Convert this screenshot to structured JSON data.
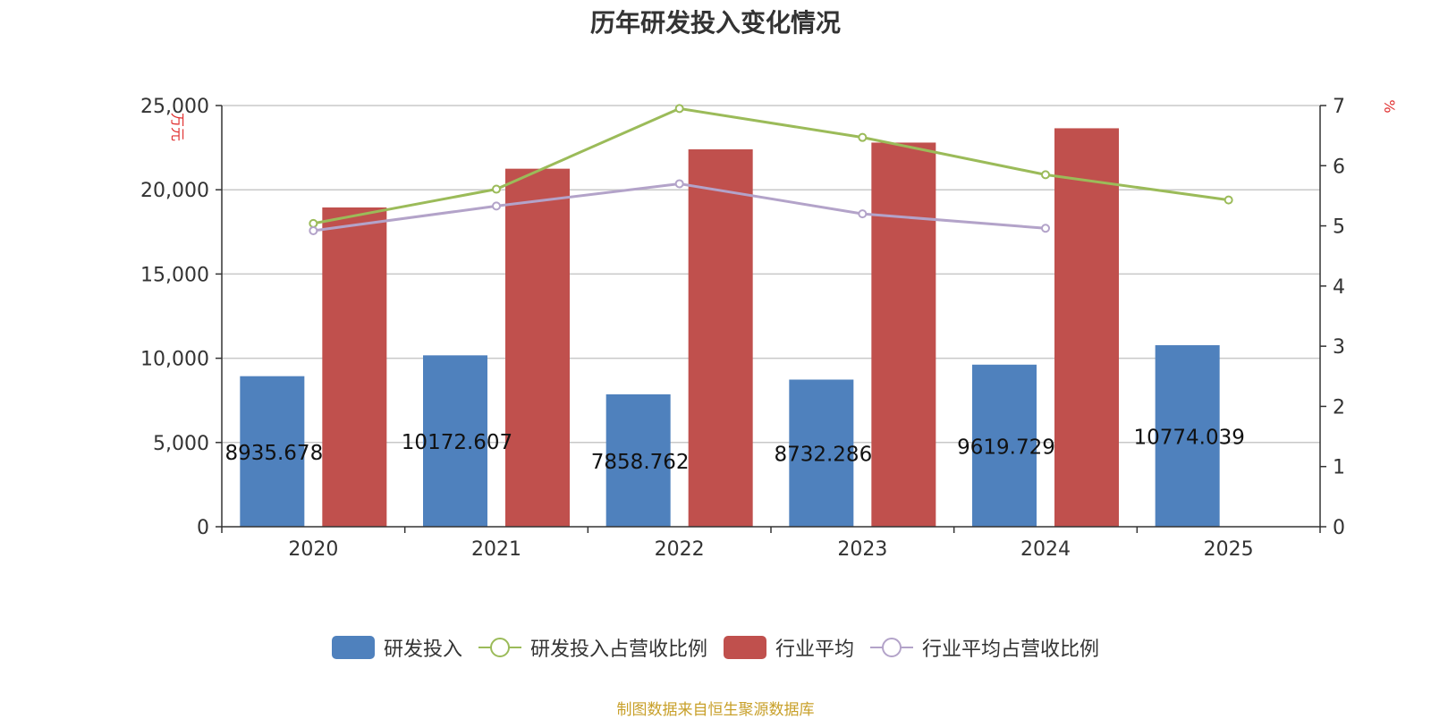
{
  "title": "历年研发投入变化情况",
  "source": "制图数据来自恒生聚源数据库",
  "chart_data": {
    "type": "bar",
    "categories": [
      "2020",
      "2021",
      "2022",
      "2023",
      "2024",
      "2025"
    ],
    "y_left": {
      "unit_label": "万元",
      "min": 0,
      "max": 25000,
      "ticks": [
        0,
        5000,
        10000,
        15000,
        20000,
        25000
      ],
      "tick_labels": [
        "0",
        "5,000",
        "10,000",
        "15,000",
        "20,000",
        "25,000"
      ]
    },
    "y_right": {
      "unit_label": "%",
      "min": 0,
      "max": 7,
      "ticks": [
        0,
        1,
        2,
        3,
        4,
        5,
        6,
        7
      ],
      "tick_labels": [
        "0",
        "1",
        "2",
        "3",
        "4",
        "5",
        "6",
        "7"
      ]
    },
    "grid": true,
    "legend_position": "bottom-center",
    "series": [
      {
        "name": "研发投入",
        "kind": "bar",
        "axis": "left",
        "color": "#4f81bd",
        "values": [
          8935.678,
          10172.607,
          7858.762,
          8732.286,
          9619.729,
          10774.039
        ],
        "data_labels": [
          "8935.678",
          "10172.607",
          "7858.762",
          "8732.286",
          "9619.729",
          "10774.039"
        ]
      },
      {
        "name": "研发投入占营收比例",
        "kind": "line",
        "axis": "right",
        "color": "#9bbb59",
        "values": [
          5.04,
          5.61,
          6.95,
          6.47,
          5.85,
          5.43
        ]
      },
      {
        "name": "行业平均",
        "kind": "bar",
        "axis": "left",
        "color": "#c0504d",
        "values": [
          18950,
          21250,
          22400,
          22800,
          23650,
          null
        ]
      },
      {
        "name": "行业平均占营收比例",
        "kind": "line",
        "axis": "right",
        "color": "#b3a3c9",
        "values": [
          4.92,
          5.33,
          5.7,
          5.2,
          4.96,
          null
        ]
      }
    ]
  }
}
